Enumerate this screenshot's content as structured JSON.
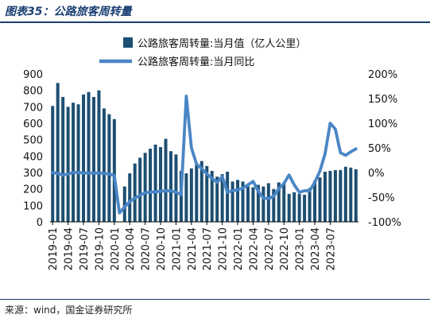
{
  "figure": {
    "title": "图表35：公路旅客周转量",
    "source": "来源：wind，国金证券研究所"
  },
  "colors": {
    "bar": "#1d4f73",
    "line": "#4a86c5",
    "header": "#1a3f73"
  },
  "chart_data": {
    "type": "bar",
    "title": "",
    "legend_position": "top",
    "grid": false,
    "x_tick_labels": [
      "2019-01",
      "2019-04",
      "2019-07",
      "2019-10",
      "2020-01",
      "2020-04",
      "2020-07",
      "2020-10",
      "2021-01",
      "2021-04",
      "2021-07",
      "2021-10",
      "2022-01",
      "2022-04",
      "2022-07",
      "2022-10",
      "2023-01",
      "2023-04",
      "2023-07"
    ],
    "y_left": {
      "min": 0,
      "max": 900,
      "ticks": [
        "0",
        "100",
        "200",
        "300",
        "400",
        "500",
        "600",
        "700",
        "800",
        "900"
      ]
    },
    "y_right": {
      "min": -100,
      "max": 200,
      "ticks": [
        "-100%",
        "-50%",
        "0%",
        "50%",
        "100%",
        "150%",
        "200%"
      ]
    },
    "series": [
      {
        "name": "公路旅客周转量:当月值（亿人公里）",
        "kind": "bar",
        "axis": "left",
        "values": [
          705,
          845,
          760,
          700,
          725,
          715,
          775,
          790,
          760,
          800,
          690,
          655,
          625,
          0,
          215,
          295,
          355,
          390,
          420,
          445,
          470,
          455,
          505,
          430,
          410,
          310,
          295,
          325,
          350,
          370,
          340,
          310,
          275,
          290,
          305,
          245,
          255,
          245,
          215,
          210,
          225,
          215,
          235,
          200,
          240,
          235,
          170,
          180,
          170,
          165,
          205,
          250,
          270,
          305,
          310,
          315,
          315,
          335,
          330,
          320
        ]
      },
      {
        "name": "公路旅客周转量:当月同比",
        "kind": "line",
        "axis": "right",
        "values": [
          0,
          -2,
          -5,
          -3,
          0,
          0,
          -1,
          -1,
          -1,
          -1,
          -2,
          -3,
          -6,
          -82,
          -70,
          -59,
          -52,
          -46,
          -41,
          -40,
          -39,
          -38,
          -37,
          -37,
          -40,
          -45,
          155,
          50,
          17,
          8,
          -3,
          -12,
          -20,
          -8,
          -40,
          -37,
          -35,
          -32,
          -25,
          -18,
          -38,
          -52,
          -53,
          -48,
          -33,
          -22,
          -5,
          -25,
          -40,
          -37,
          -37,
          -20,
          3,
          38,
          100,
          88,
          40,
          35,
          42,
          48
        ]
      }
    ]
  }
}
